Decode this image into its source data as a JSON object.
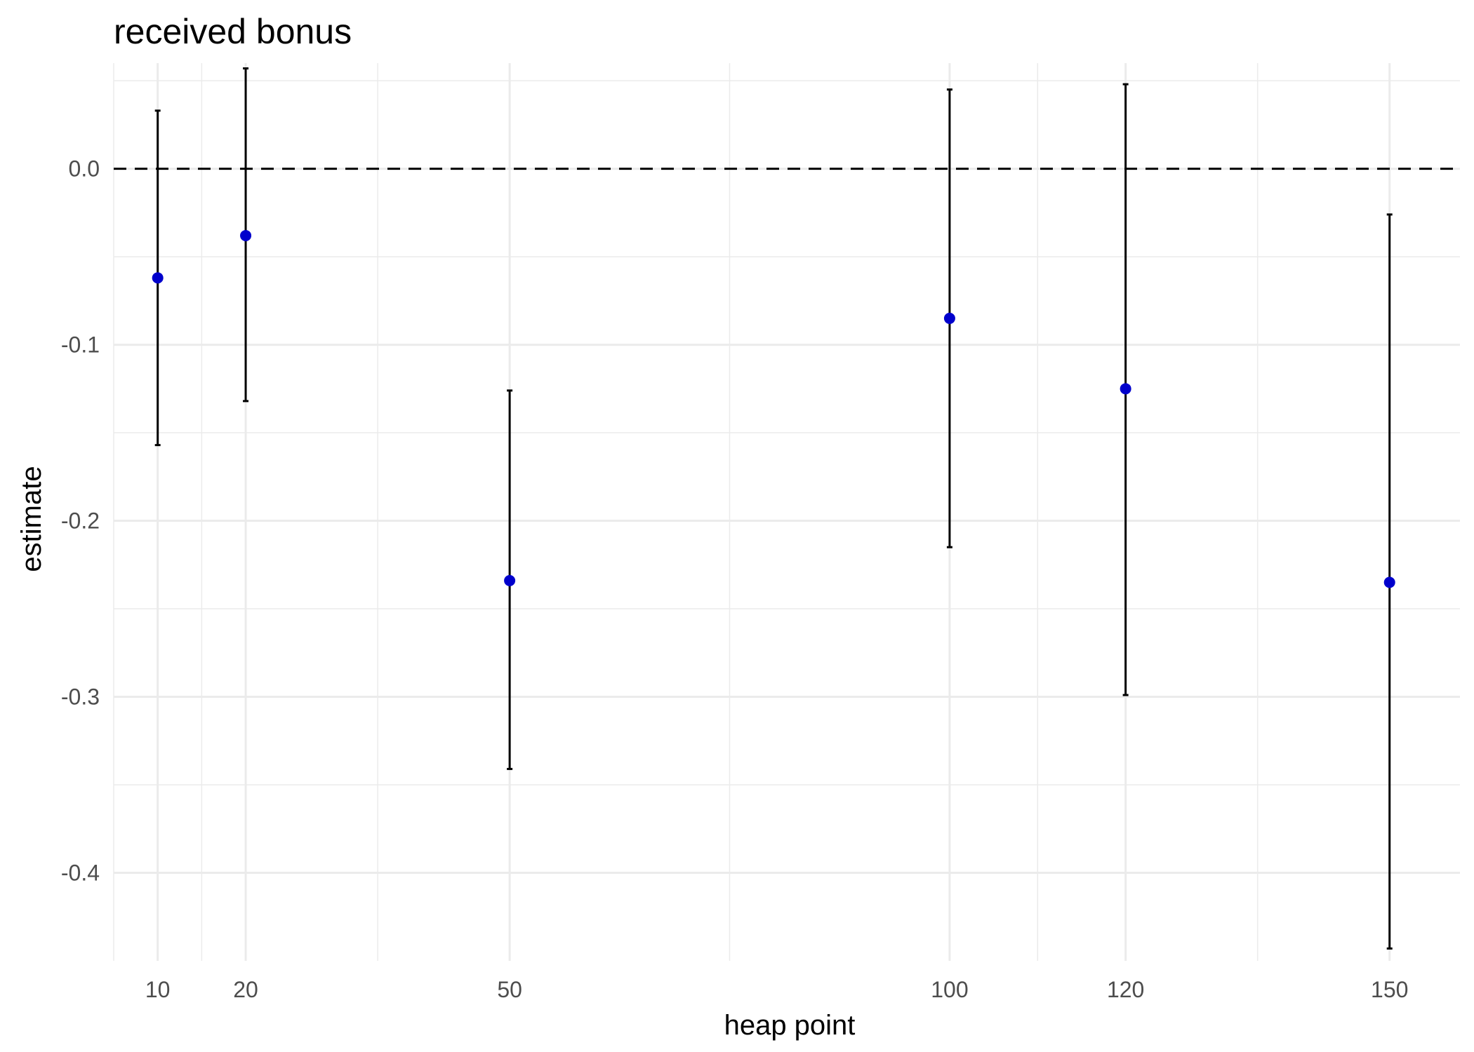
{
  "chart_data": {
    "type": "scatter",
    "title": "received bonus",
    "xlabel": "heap point",
    "ylabel": "estimate",
    "x": [
      10,
      20,
      50,
      100,
      120,
      150
    ],
    "y": [
      -0.062,
      -0.038,
      -0.234,
      -0.085,
      -0.125,
      -0.235
    ],
    "ymin": [
      -0.157,
      -0.132,
      -0.341,
      -0.215,
      -0.299,
      -0.443
    ],
    "ymax": [
      0.033,
      0.057,
      -0.126,
      0.045,
      0.048,
      -0.026
    ],
    "xlim": [
      5,
      158
    ],
    "ylim": [
      -0.45,
      0.06
    ],
    "x_ticks": [
      10,
      20,
      50,
      100,
      120,
      150
    ],
    "x_tick_labels": [
      "10",
      "20",
      "50",
      "100",
      "120",
      "150"
    ],
    "y_ticks": [
      -0.4,
      -0.3,
      -0.2,
      -0.1,
      0.0
    ],
    "y_tick_labels": [
      "-0.4",
      "-0.3",
      "-0.2",
      "-0.1",
      "0.0"
    ],
    "reference_line": 0.0,
    "grid": true,
    "legend": "none",
    "colors": {
      "point": "#0000cc",
      "errorbar": "#000000",
      "reference_line": "#000000",
      "grid": "#ebebeb",
      "tick_label": "#4d4d4d"
    }
  }
}
